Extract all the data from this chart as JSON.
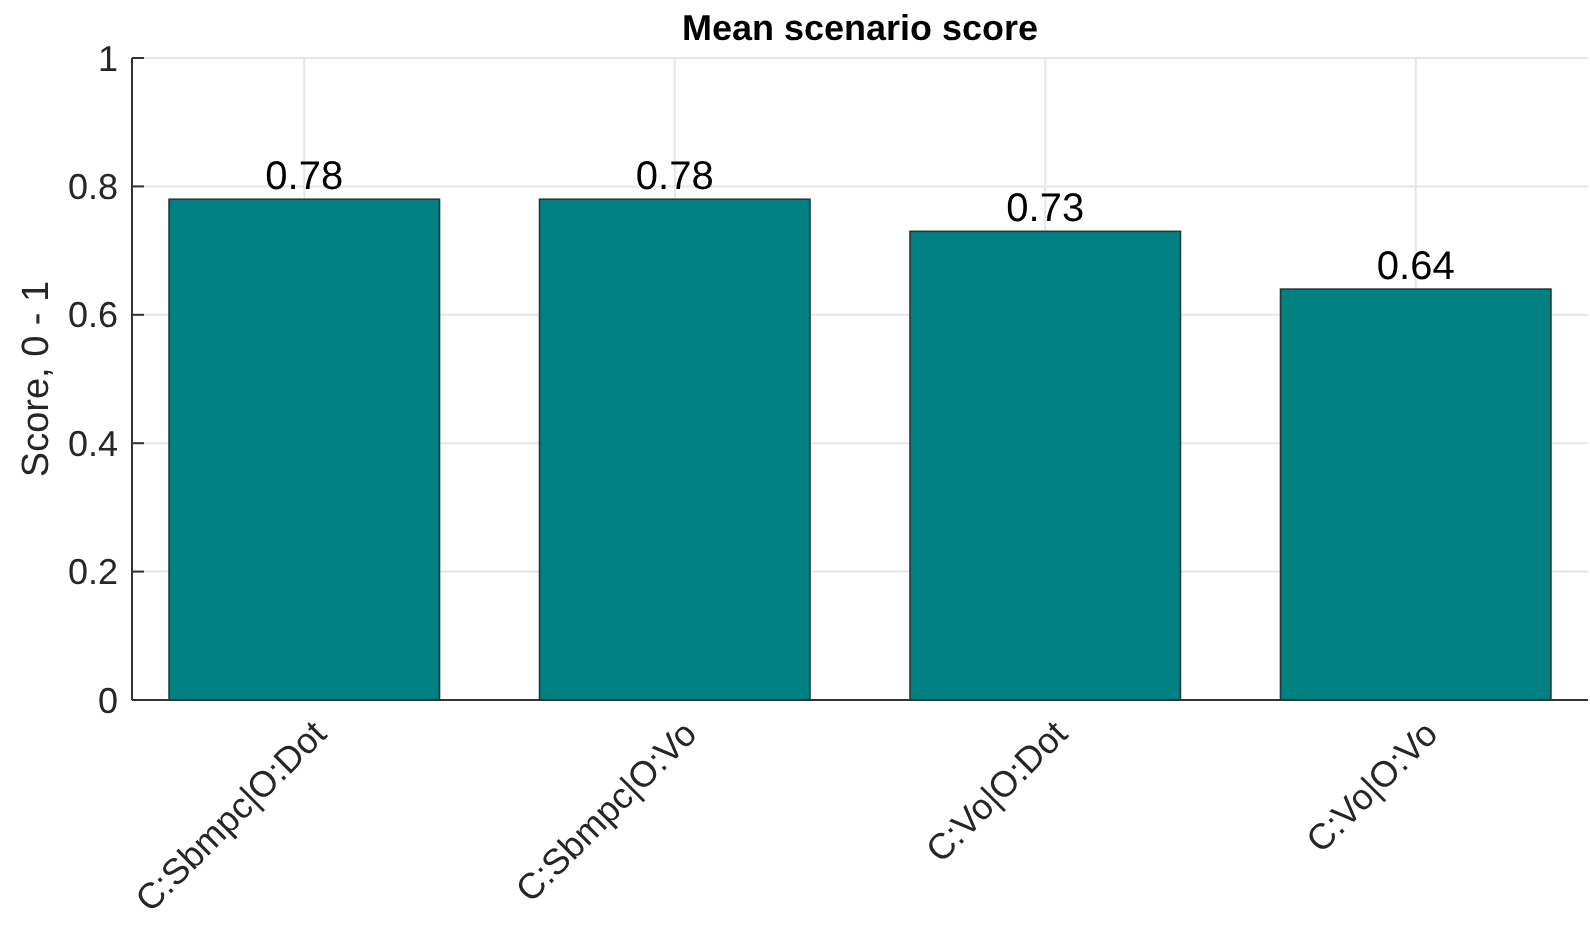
{
  "chart_data": {
    "type": "bar",
    "title": "Mean scenario score",
    "ylabel": "Score, 0 - 1",
    "categories": [
      "C:Sbmpc|O:Dot",
      "C:Sbmpc|O:Vo",
      "C:Vo|O:Dot",
      "C:Vo|O:Vo"
    ],
    "values": [
      0.78,
      0.78,
      0.73,
      0.64
    ],
    "color": "#008080",
    "ylim": [
      0,
      1
    ],
    "yticks": [
      0,
      0.2,
      0.4,
      0.6,
      0.8,
      1
    ],
    "grid": true,
    "data_labels": true
  }
}
